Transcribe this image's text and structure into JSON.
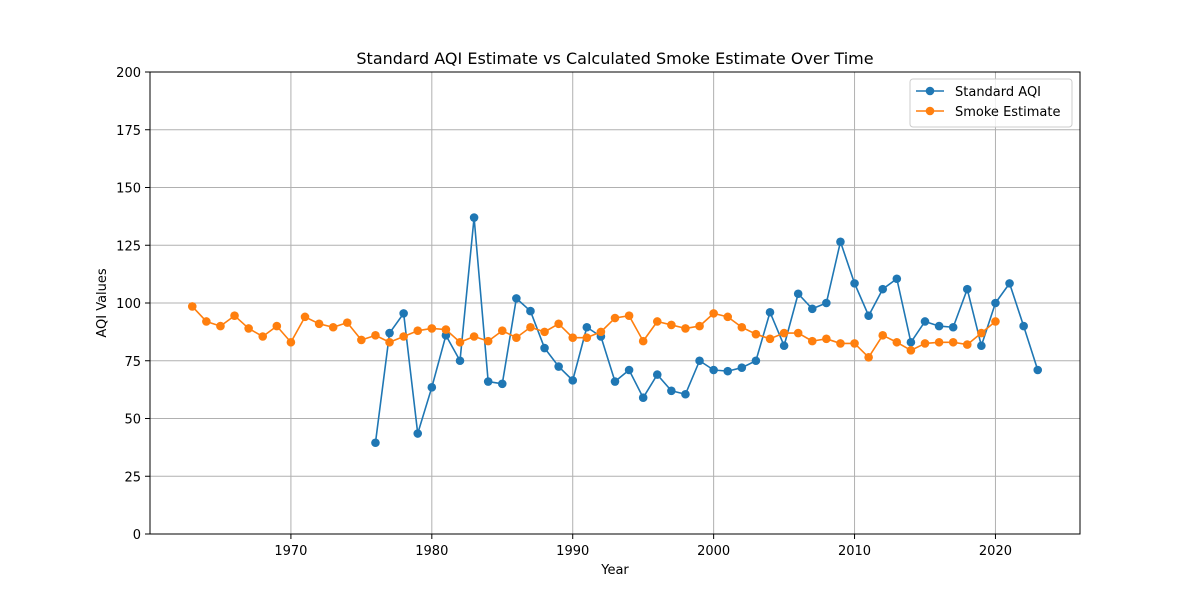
{
  "chart_data": {
    "type": "line",
    "title": "Standard AQI Estimate vs Calculated Smoke Estimate Over Time",
    "xlabel": "Year",
    "ylabel": "AQI Values",
    "xlim": [
      1960,
      2026
    ],
    "ylim": [
      0,
      200
    ],
    "x_ticks": [
      1970,
      1980,
      1990,
      2000,
      2010,
      2020
    ],
    "y_ticks": [
      0,
      25,
      50,
      75,
      100,
      125,
      150,
      175,
      200
    ],
    "grid": true,
    "legend_position": "top-right",
    "series": [
      {
        "name": "Standard AQI",
        "color": "#1f77b4",
        "marker": "circle",
        "points": [
          [
            1976,
            39.5
          ],
          [
            1977,
            87
          ],
          [
            1978,
            95.5
          ],
          [
            1979,
            43.5
          ],
          [
            1980,
            63.5
          ],
          [
            1981,
            86
          ],
          [
            1982,
            75
          ],
          [
            1983,
            137
          ],
          [
            1984,
            66
          ],
          [
            1985,
            65
          ],
          [
            1986,
            102
          ],
          [
            1987,
            96.5
          ],
          [
            1988,
            80.5
          ],
          [
            1989,
            72.5
          ],
          [
            1990,
            66.5
          ],
          [
            1991,
            89.5
          ],
          [
            1992,
            85.5
          ],
          [
            1993,
            66
          ],
          [
            1994,
            71
          ],
          [
            1995,
            59
          ],
          [
            1996,
            69
          ],
          [
            1997,
            62
          ],
          [
            1998,
            60.5
          ],
          [
            1999,
            75
          ],
          [
            2000,
            71
          ],
          [
            2001,
            70.5
          ],
          [
            2002,
            72
          ],
          [
            2003,
            75
          ],
          [
            2004,
            96
          ],
          [
            2005,
            81.5
          ],
          [
            2006,
            104
          ],
          [
            2007,
            97.5
          ],
          [
            2008,
            100
          ],
          [
            2009,
            126.5
          ],
          [
            2010,
            108.5
          ],
          [
            2011,
            94.5
          ],
          [
            2012,
            106
          ],
          [
            2013,
            110.5
          ],
          [
            2014,
            83
          ],
          [
            2015,
            92
          ],
          [
            2016,
            90
          ],
          [
            2017,
            89.5
          ],
          [
            2018,
            106
          ],
          [
            2019,
            81.5
          ],
          [
            2020,
            100
          ],
          [
            2021,
            108.5
          ],
          [
            2022,
            90
          ],
          [
            2023,
            71
          ]
        ]
      },
      {
        "name": "Smoke Estimate",
        "color": "#ff7f0e",
        "marker": "circle",
        "points": [
          [
            1963,
            98.5
          ],
          [
            1964,
            92
          ],
          [
            1965,
            90
          ],
          [
            1966,
            94.5
          ],
          [
            1967,
            89
          ],
          [
            1968,
            85.5
          ],
          [
            1969,
            90
          ],
          [
            1970,
            83
          ],
          [
            1971,
            94
          ],
          [
            1972,
            91
          ],
          [
            1973,
            89.5
          ],
          [
            1974,
            91.5
          ],
          [
            1975,
            84
          ],
          [
            1976,
            86
          ],
          [
            1977,
            83
          ],
          [
            1978,
            85.5
          ],
          [
            1979,
            88
          ],
          [
            1980,
            89
          ],
          [
            1981,
            88.5
          ],
          [
            1982,
            83
          ],
          [
            1983,
            85.5
          ],
          [
            1984,
            83.5
          ],
          [
            1985,
            88
          ],
          [
            1986,
            85
          ],
          [
            1987,
            89.5
          ],
          [
            1988,
            87.5
          ],
          [
            1989,
            91
          ],
          [
            1990,
            85
          ],
          [
            1991,
            85
          ],
          [
            1992,
            87.5
          ],
          [
            1993,
            93.5
          ],
          [
            1994,
            94.5
          ],
          [
            1995,
            83.5
          ],
          [
            1996,
            92
          ],
          [
            1997,
            90.5
          ],
          [
            1998,
            89
          ],
          [
            1999,
            90
          ],
          [
            2000,
            95.5
          ],
          [
            2001,
            94
          ],
          [
            2002,
            89.5
          ],
          [
            2003,
            86.5
          ],
          [
            2004,
            84.5
          ],
          [
            2005,
            87
          ],
          [
            2006,
            87
          ],
          [
            2007,
            83.5
          ],
          [
            2008,
            84.5
          ],
          [
            2009,
            82.5
          ],
          [
            2010,
            82.5
          ],
          [
            2011,
            76.5
          ],
          [
            2012,
            86
          ],
          [
            2013,
            83
          ],
          [
            2014,
            79.5
          ],
          [
            2015,
            82.5
          ],
          [
            2016,
            83
          ],
          [
            2017,
            83
          ],
          [
            2018,
            82
          ],
          [
            2019,
            87
          ],
          [
            2020,
            92
          ]
        ]
      }
    ]
  }
}
